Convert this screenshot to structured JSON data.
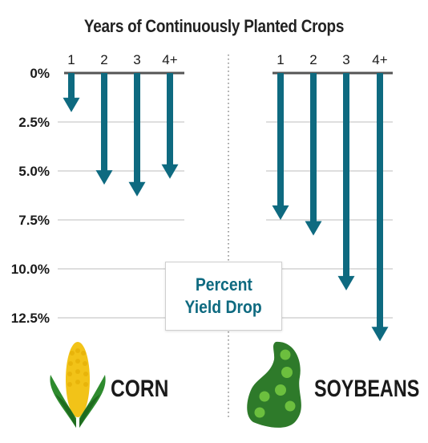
{
  "title": "Years of Continuously Planted Crops",
  "callout": {
    "line1": "Percent",
    "line2": "Yield Drop"
  },
  "colors": {
    "arrow": "#0e6a80",
    "axis": "#555555",
    "grid": "#bdbdbd",
    "corn_green": "#2e8b2e",
    "corn_yellow": "#f2c318",
    "soy_green": "#3a7a2a"
  },
  "chart_data": [
    {
      "type": "bar",
      "name_label": "CORN",
      "categories": [
        "1",
        "2",
        "3",
        "4+"
      ],
      "values": [
        2,
        5.7,
        6.3,
        5.4
      ],
      "ylim": [
        0,
        12.5
      ],
      "yticks": [
        "0%",
        "2.5%",
        "5.0%",
        "7.5%",
        "10.0%",
        "12.5%"
      ],
      "grid": true
    },
    {
      "type": "bar",
      "name_label": "SOYBEANS",
      "categories": [
        "1",
        "2",
        "3",
        "4+"
      ],
      "values": [
        7.5,
        8.3,
        11.1,
        13.7
      ],
      "ylim": [
        0,
        12.5
      ],
      "yticks": [
        "0%",
        "2.5%",
        "5.0%",
        "7.5%",
        "10.0%",
        "12.5%"
      ],
      "grid": true
    }
  ]
}
